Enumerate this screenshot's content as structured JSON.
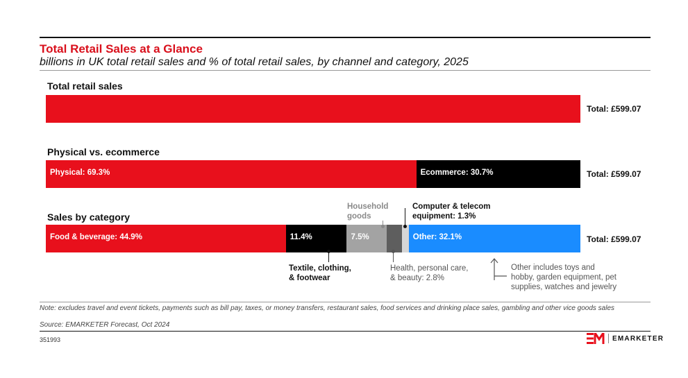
{
  "header": {
    "title": "Total Retail Sales at a Glance",
    "subtitle": "billions in UK total retail sales and % of total retail sales, by channel and category, 2025"
  },
  "chart_data": {
    "type": "bar",
    "orientation": "horizontal-stacked",
    "rows": [
      {
        "label": "Total retail sales",
        "total_label": "Total: £599.07",
        "segments": [
          {
            "key": "total",
            "text": "",
            "share": 100,
            "color": "#e8101c"
          }
        ]
      },
      {
        "label": "Physical vs. ecommerce",
        "total_label": "Total: £599.07",
        "segments": [
          {
            "key": "physical",
            "text": "Physical: 69.3%",
            "share": 69.3,
            "color": "#e8101c"
          },
          {
            "key": "ecommerce",
            "text": "Ecommerce: 30.7%",
            "share": 30.7,
            "color": "#000000"
          }
        ]
      },
      {
        "label": "Sales by category",
        "total_label": "Total: £599.07",
        "segments": [
          {
            "key": "food",
            "text": "Food & beverage: 44.9%",
            "share": 44.9,
            "color": "#e8101c"
          },
          {
            "key": "textile",
            "text": "11.4%",
            "share": 11.4,
            "color": "#000000"
          },
          {
            "key": "household",
            "text": "7.5%",
            "share": 7.5,
            "color": "#a3a3a3"
          },
          {
            "key": "health",
            "text": "",
            "share": 2.8,
            "color": "#5e5e5e"
          },
          {
            "key": "computer",
            "text": "",
            "share": 1.3,
            "color": "#d6d6d6"
          },
          {
            "key": "other",
            "text": "Other: 32.1%",
            "share": 32.1,
            "color": "#1a8cff"
          }
        ]
      }
    ],
    "callouts": {
      "household": [
        "Household",
        "goods"
      ],
      "computer": [
        "Computer & telecom",
        "equipment: 1.3%"
      ],
      "textile": [
        "Textile, clothing,",
        "& footwear"
      ],
      "health": [
        "Health, personal care,",
        "& beauty: 2.8%"
      ],
      "other": [
        "Other includes toys and",
        "hobby, garden equipment, pet",
        "supplies, watches and jewelry"
      ]
    }
  },
  "footer": {
    "note": "Note: excludes travel and event tickets, payments such as bill pay, taxes, or money transfers, restaurant sales, food services and drinking place sales, gambling and other vice goods sales",
    "source": "Source: EMARKETER Forecast, Oct 2024",
    "chart_id": "351993",
    "brand": "EMARKETER"
  },
  "colors": {
    "brand_red": "#e8101c",
    "title_red": "#d9101c"
  }
}
